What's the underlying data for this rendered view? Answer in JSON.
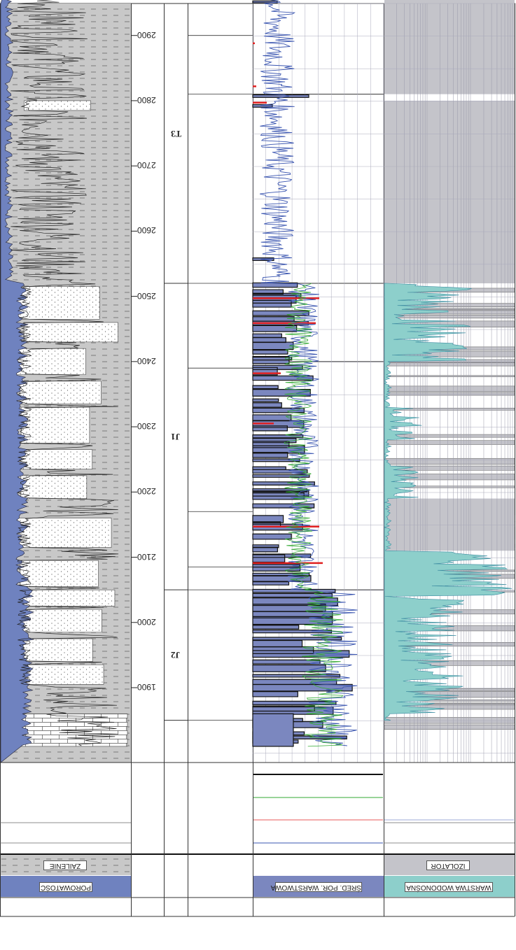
{
  "chart_data": {
    "type": "well-log",
    "orientation": "rotated-180",
    "depth_axis": {
      "ticks": [
        1900,
        2000,
        2100,
        2200,
        2300,
        2400,
        2500,
        2600,
        2700,
        2800,
        2900
      ],
      "labels": [
        "1900",
        "2000",
        "2100",
        "2200",
        "2300",
        "2400",
        "2500",
        "2600",
        "2700",
        "2800",
        "2900"
      ],
      "range": [
        1810,
        2980
      ]
    },
    "zones": [
      {
        "label": "J2",
        "top": 1850,
        "bottom": 2050
      },
      {
        "label": "J1",
        "top": 2050,
        "bottom": 2520
      },
      {
        "label": "T3",
        "top": 2520,
        "bottom": 2980
      }
    ],
    "legend": {
      "porosity": "POROWATOŚĆ",
      "clay": "ZAILENIE",
      "avg_porosity": "ŚRED. POR. WARSTWOWA",
      "water_layer": "WARSTWA WODONOŚNA",
      "insulator": "IZOLATOR"
    },
    "colors": {
      "porosity_fill": "#6f82bf",
      "clay_fill": "#c8c8c8",
      "avg_porosity_fill": "#7b87bf",
      "curve_blue": "#3a55b0",
      "curve_green": "#33aa33",
      "curve_red": "#e02020",
      "water_fill": "#8dcfcb",
      "insulator_fill": "#c4c4ca"
    }
  }
}
